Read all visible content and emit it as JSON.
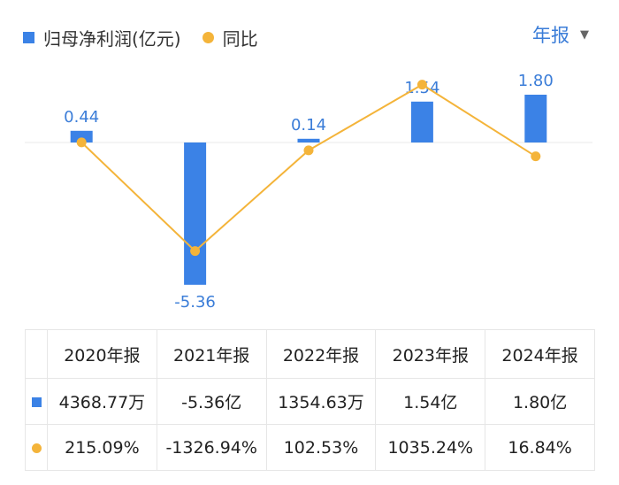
{
  "legend": {
    "bar_label": "归母净利润(亿元)",
    "line_label": "同比"
  },
  "period_selector": {
    "label": "年报"
  },
  "colors": {
    "bar": "#3b82e6",
    "line": "#f4b43a",
    "positive": "#e0474c",
    "negative": "#1f9d57",
    "bar_label": "#3b7dd8"
  },
  "chart_data": {
    "type": "bar",
    "categories": [
      "2020年报",
      "2021年报",
      "2022年报",
      "2023年报",
      "2024年报"
    ],
    "series": [
      {
        "name": "归母净利润(亿元)",
        "type": "bar",
        "values": [
          0.44,
          -5.36,
          0.14,
          1.54,
          1.8
        ],
        "labels": [
          "0.44",
          "-5.36",
          "0.14",
          "1.54",
          "1.80"
        ]
      },
      {
        "name": "同比",
        "type": "line",
        "values": [
          215.09,
          -1326.94,
          102.53,
          1035.24,
          16.84
        ]
      }
    ]
  },
  "table": {
    "headers": [
      "2020年报",
      "2021年报",
      "2022年报",
      "2023年报",
      "2024年报"
    ],
    "profit_row": [
      "4368.77万",
      "-5.36亿",
      "1354.63万",
      "1.54亿",
      "1.80亿"
    ],
    "yoy_row": [
      "215.09%",
      "-1326.94%",
      "102.53%",
      "1035.24%",
      "16.84%"
    ]
  }
}
